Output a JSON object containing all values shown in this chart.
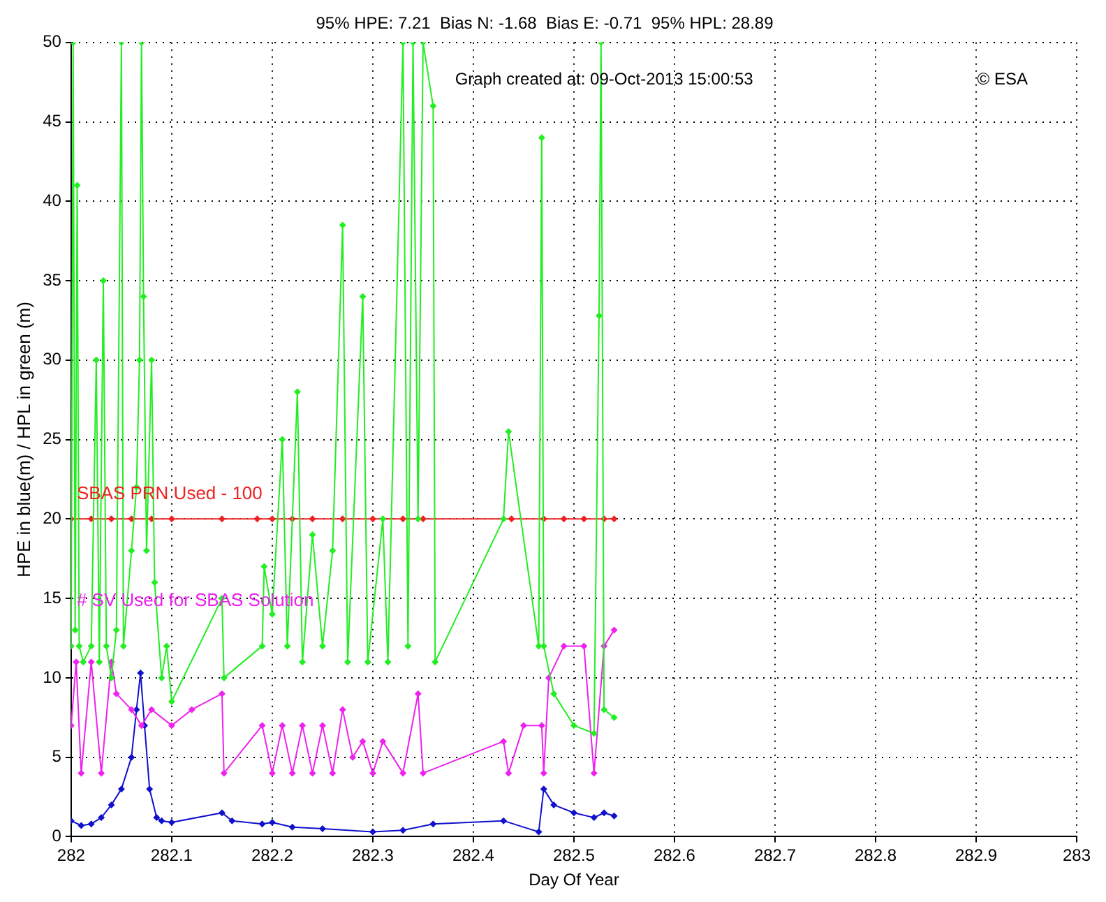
{
  "chart_data": {
    "type": "line",
    "title": "95% HPE: 7.21  Bias N: -1.68  Bias E: -0.71  95% HPL: 28.89",
    "xlabel": "Day Of Year",
    "ylabel": "HPE in blue(m) / HPL in green (m)",
    "annotations": [
      "Graph created at: 09-Oct-2013 15:00:53",
      "© ESA"
    ],
    "xlim": [
      282,
      283
    ],
    "xticks": [
      282,
      282.1,
      282.2,
      282.3,
      282.4,
      282.5,
      282.6,
      282.7,
      282.8,
      282.9,
      283
    ],
    "ylim": [
      0,
      50
    ],
    "yticks": [
      0,
      5,
      10,
      15,
      20,
      25,
      30,
      35,
      40,
      45,
      50
    ],
    "grid": true,
    "marker": "diamond",
    "line_style": "solid",
    "series": [
      {
        "color": "#22ee22",
        "x": [
          282.0,
          282.002,
          282.004,
          282.006,
          282.008,
          282.012,
          282.02,
          282.025,
          282.028,
          282.032,
          282.035,
          282.04,
          282.045,
          282.05,
          282.052,
          282.06,
          282.065,
          282.068,
          282.07,
          282.072,
          282.075,
          282.08,
          282.083,
          282.09,
          282.095,
          282.1,
          282.15,
          282.152,
          282.19,
          282.192,
          282.2,
          282.21,
          282.215,
          282.225,
          282.23,
          282.24,
          282.25,
          282.26,
          282.27,
          282.275,
          282.29,
          282.295,
          282.31,
          282.315,
          282.33,
          282.335,
          282.34,
          282.345,
          282.35,
          282.36,
          282.362,
          282.43,
          282.435,
          282.465,
          282.468,
          282.47,
          282.48,
          282.5,
          282.52,
          282.525,
          282.527,
          282.53,
          282.54
        ],
        "values": [
          12,
          50,
          13,
          41,
          12,
          11,
          12,
          30,
          11,
          35,
          12,
          10,
          13,
          50,
          12,
          18,
          22,
          30,
          50,
          34,
          18,
          30,
          16,
          10,
          12,
          8.5,
          15,
          10,
          12,
          17,
          14,
          25,
          12,
          28,
          11,
          19,
          12,
          18,
          38.5,
          11,
          34,
          11,
          20,
          11,
          50,
          12,
          50,
          20,
          50,
          46,
          11,
          20,
          25.5,
          12,
          44,
          12,
          9,
          7,
          6.5,
          32.8,
          50,
          8,
          7.5
        ]
      },
      {
        "name": "SBAS PRN Used - 100",
        "color": "#ee2222",
        "x": [
          282.0,
          282.02,
          282.04,
          282.06,
          282.08,
          282.1,
          282.15,
          282.185,
          282.2,
          282.22,
          282.24,
          282.27,
          282.3,
          282.33,
          282.35,
          282.438,
          282.47,
          282.49,
          282.51,
          282.53,
          282.54
        ],
        "values": [
          20,
          20,
          20,
          20,
          20,
          20,
          20,
          20,
          20,
          20,
          20,
          20,
          20,
          20,
          20,
          20,
          20,
          20,
          20,
          20,
          20
        ]
      },
      {
        "name": "# SV Used for SBAS Solution",
        "color": "#ee22ee",
        "x": [
          282.0,
          282.005,
          282.01,
          282.02,
          282.03,
          282.04,
          282.045,
          282.06,
          282.07,
          282.08,
          282.1,
          282.12,
          282.15,
          282.152,
          282.19,
          282.2,
          282.21,
          282.22,
          282.23,
          282.24,
          282.25,
          282.26,
          282.27,
          282.28,
          282.29,
          282.3,
          282.31,
          282.33,
          282.345,
          282.35,
          282.43,
          282.435,
          282.45,
          282.468,
          282.47,
          282.475,
          282.49,
          282.51,
          282.52,
          282.53,
          282.54
        ],
        "values": [
          7,
          11,
          4,
          11,
          4,
          11,
          9,
          8,
          7,
          8,
          7,
          8,
          9,
          4,
          7,
          4,
          7,
          4,
          7,
          4,
          7,
          4,
          8,
          5,
          6,
          4,
          6,
          4,
          9,
          4,
          6,
          4,
          7,
          7,
          4,
          10,
          12,
          12,
          4,
          12,
          13
        ]
      },
      {
        "color": "#1111cc",
        "x": [
          282.0,
          282.01,
          282.02,
          282.03,
          282.04,
          282.05,
          282.06,
          282.065,
          282.069,
          282.073,
          282.078,
          282.085,
          282.09,
          282.1,
          282.15,
          282.16,
          282.19,
          282.2,
          282.22,
          282.25,
          282.3,
          282.33,
          282.36,
          282.43,
          282.465,
          282.47,
          282.48,
          282.5,
          282.52,
          282.53,
          282.54
        ],
        "values": [
          1,
          0.7,
          0.8,
          1.2,
          2,
          3,
          5,
          8,
          10.3,
          7,
          3,
          1.2,
          1,
          0.9,
          1.5,
          1,
          0.8,
          0.9,
          0.6,
          0.5,
          0.3,
          0.4,
          0.8,
          1,
          0.3,
          3,
          2,
          1.5,
          1.2,
          1.5,
          1.3
        ]
      }
    ]
  }
}
